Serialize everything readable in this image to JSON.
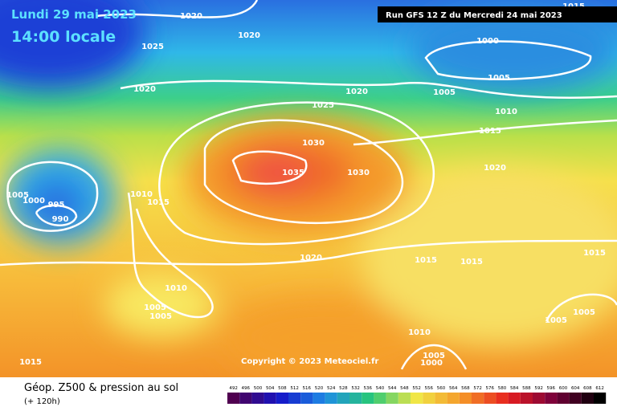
{
  "header": {
    "date": "Lundi 29 mai 2023",
    "time": "14:00 locale",
    "run": "Run GFS 12 Z du Mercredi 24 mai 2023"
  },
  "isobars": [
    "1020",
    "1020",
    "1025",
    "1020",
    "1025",
    "1020",
    "1000",
    "1005",
    "1005",
    "1010",
    "1015",
    "1020",
    "1030",
    "1035",
    "1030",
    "1005",
    "1000",
    "995",
    "990",
    "1010",
    "1015",
    "1020",
    "1015",
    "1015",
    "1015",
    "1010",
    "1005",
    "1005",
    "1005",
    "1005",
    "1010",
    "1005",
    "1000",
    "1015",
    "1015"
  ],
  "copyright": "Copyright © 2023 Meteociel.fr",
  "footer": {
    "title": "Géop. Z500 & pression au sol",
    "subtitle": "(+ 120h)"
  },
  "scale": {
    "labels": [
      492,
      496,
      500,
      504,
      508,
      512,
      516,
      520,
      524,
      528,
      532,
      536,
      540,
      544,
      548,
      552,
      556,
      560,
      564,
      568,
      572,
      576,
      580,
      584,
      588,
      592,
      596,
      600,
      604,
      608,
      612
    ]
  }
}
